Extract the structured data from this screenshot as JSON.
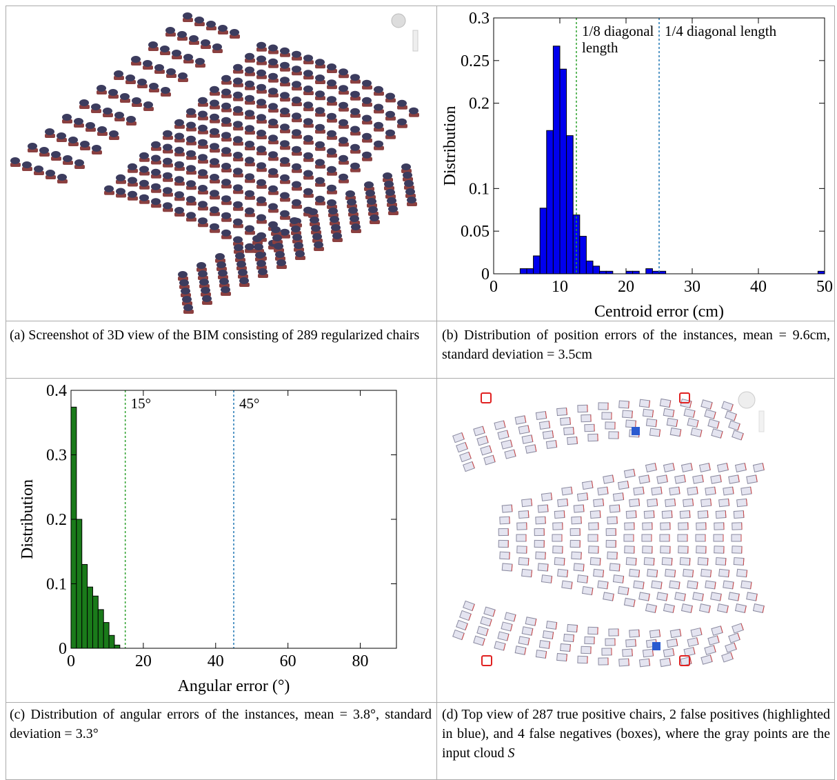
{
  "captions": [
    {
      "text": "(a) Screenshot of 3D view of the BIM consisting of 289 regularized chairs"
    },
    {
      "text": "(b) Distribution of position errors of the instances, mean = 9.6cm, standard deviation = 3.5cm"
    },
    {
      "text": "(c) Distribution of angular errors of the instances, mean = 3.8°, standard deviation = 3.3°"
    },
    {
      "text": "(d) Top view of 287 true positive chairs, 2 false positives (highlighted in blue), and 4 false negatives (boxes), where the gray points are the input cloud",
      "emphasis": "S"
    }
  ],
  "chart_data": [
    {
      "type": "histogram",
      "xlabel": "Centroid error (cm)",
      "ylabel": "Distribution",
      "color": "#0000ee",
      "bins": [
        4,
        5,
        6,
        7,
        8,
        9,
        10,
        11,
        12,
        13,
        14,
        15,
        16,
        17,
        18,
        19,
        20,
        21,
        22,
        23,
        24,
        25,
        26,
        27,
        28,
        29,
        30,
        31,
        32,
        33,
        34,
        35,
        36,
        37,
        38,
        39,
        40,
        41,
        42,
        43,
        44,
        45,
        46,
        47,
        48,
        49,
        50
      ],
      "values": [
        0.006,
        0.006,
        0.021,
        0.077,
        0.168,
        0.267,
        0.24,
        0.162,
        0.069,
        0.044,
        0.015,
        0.009,
        0.003,
        0.003,
        0,
        0,
        0.003,
        0.003,
        0,
        0.006,
        0.003,
        0.003,
        0,
        0,
        0,
        0,
        0,
        0,
        0,
        0,
        0,
        0,
        0,
        0,
        0,
        0,
        0,
        0,
        0,
        0,
        0,
        0,
        0,
        0,
        0,
        0.003
      ],
      "xlim": [
        0,
        50
      ],
      "ylim": [
        0,
        0.3
      ],
      "xticks": [
        0,
        10,
        20,
        30,
        40,
        50
      ],
      "yticks": [
        0,
        0.05,
        0.1,
        0.2,
        0.25,
        0.3
      ],
      "vlines": [
        {
          "x": 12.5,
          "color": "#2ca02c",
          "lines": [
            "1/8 diagonal",
            "length"
          ]
        },
        {
          "x": 25,
          "color": "#1f77b4",
          "lines": [
            "1/4 diagonal length"
          ]
        }
      ]
    },
    {
      "type": "histogram",
      "xlabel": "Angular error (°)",
      "ylabel": "Distribution",
      "color": "#1a7a1a",
      "bins": [
        0,
        1.5,
        3,
        4.5,
        6,
        7.5,
        9,
        10.5,
        12,
        13.5
      ],
      "values": [
        0.374,
        0.2,
        0.13,
        0.095,
        0.081,
        0.06,
        0.04,
        0.02,
        0.005
      ],
      "xlim": [
        0,
        90
      ],
      "ylim": [
        0,
        0.4
      ],
      "xticks": [
        0,
        20,
        40,
        60,
        80
      ],
      "yticks": [
        0,
        0.1,
        0.2,
        0.3,
        0.4
      ],
      "vlines": [
        {
          "x": 15,
          "color": "#2ca02c",
          "lines": [
            "15°"
          ]
        },
        {
          "x": 45,
          "color": "#1f77b4",
          "lines": [
            "45°"
          ]
        }
      ]
    }
  ]
}
